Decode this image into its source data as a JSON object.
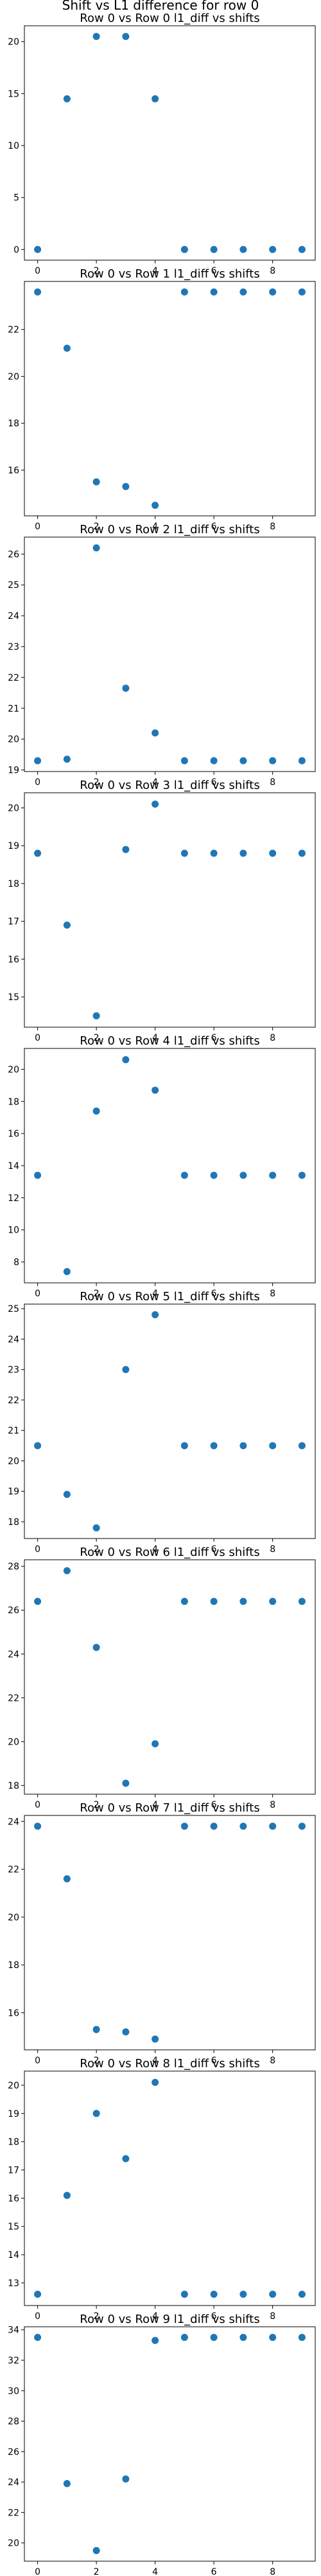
{
  "figure": {
    "suptitle": "Shift vs L1 difference for row 0"
  },
  "chart_data": [
    {
      "type": "scatter",
      "title": "Row 0 vs Row 0 l1_diff vs shifts",
      "x": [
        0,
        1,
        2,
        3,
        4,
        5,
        6,
        7,
        8,
        9
      ],
      "y": [
        0.0,
        14.5,
        20.5,
        20.5,
        14.5,
        0.0,
        0.0,
        0.0,
        0.0,
        0.0
      ],
      "xlim": [
        -0.45,
        9.45
      ],
      "ylim": [
        -1.03,
        21.53
      ],
      "xticks": [
        0,
        2,
        4,
        6,
        8
      ],
      "yticks": [
        0,
        5,
        10,
        15,
        20
      ],
      "grid": false
    },
    {
      "type": "scatter",
      "title": "Row 0 vs Row 1 l1_diff vs shifts",
      "x": [
        0,
        1,
        2,
        3,
        4,
        5,
        6,
        7,
        8,
        9
      ],
      "y": [
        23.6,
        21.2,
        15.5,
        15.3,
        14.5,
        23.6,
        23.6,
        23.6,
        23.6,
        23.6
      ],
      "xlim": [
        -0.45,
        9.45
      ],
      "ylim": [
        14.05,
        24.05
      ],
      "xticks": [
        0,
        2,
        4,
        6,
        8
      ],
      "yticks": [
        16,
        18,
        20,
        22
      ],
      "grid": false
    },
    {
      "type": "scatter",
      "title": "Row 0 vs Row 2 l1_diff vs shifts",
      "x": [
        0,
        1,
        2,
        3,
        4,
        5,
        6,
        7,
        8,
        9
      ],
      "y": [
        19.3,
        19.35,
        26.2,
        21.65,
        20.2,
        19.3,
        19.3,
        19.3,
        19.3,
        19.3
      ],
      "xlim": [
        -0.45,
        9.45
      ],
      "ylim": [
        18.95,
        26.55
      ],
      "xticks": [
        0,
        2,
        4,
        6,
        8
      ],
      "yticks": [
        19,
        20,
        21,
        22,
        23,
        24,
        25,
        26
      ],
      "grid": false
    },
    {
      "type": "scatter",
      "title": "Row 0 vs Row 3 l1_diff vs shifts",
      "x": [
        0,
        1,
        2,
        3,
        4,
        5,
        6,
        7,
        8,
        9
      ],
      "y": [
        18.8,
        16.9,
        14.5,
        18.9,
        20.1,
        18.8,
        18.8,
        18.8,
        18.8,
        18.8
      ],
      "xlim": [
        -0.45,
        9.45
      ],
      "ylim": [
        14.2,
        20.4
      ],
      "xticks": [
        0,
        2,
        4,
        6,
        8
      ],
      "yticks": [
        15,
        16,
        17,
        18,
        19,
        20
      ],
      "grid": false
    },
    {
      "type": "scatter",
      "title": "Row 0 vs Row 4 l1_diff vs shifts",
      "x": [
        0,
        1,
        2,
        3,
        4,
        5,
        6,
        7,
        8,
        9
      ],
      "y": [
        13.4,
        7.4,
        17.4,
        20.6,
        18.7,
        13.4,
        13.4,
        13.4,
        13.4,
        13.4
      ],
      "xlim": [
        -0.45,
        9.45
      ],
      "ylim": [
        6.7,
        21.3
      ],
      "xticks": [
        0,
        2,
        4,
        6,
        8
      ],
      "yticks": [
        8,
        10,
        12,
        14,
        16,
        18,
        20
      ],
      "grid": false
    },
    {
      "type": "scatter",
      "title": "Row 0 vs Row 5 l1_diff vs shifts",
      "x": [
        0,
        1,
        2,
        3,
        4,
        5,
        6,
        7,
        8,
        9
      ],
      "y": [
        20.5,
        18.9,
        17.8,
        23.0,
        24.8,
        20.5,
        20.5,
        20.5,
        20.5,
        20.5
      ],
      "xlim": [
        -0.45,
        9.45
      ],
      "ylim": [
        17.45,
        25.15
      ],
      "xticks": [
        0,
        2,
        4,
        6,
        8
      ],
      "yticks": [
        18,
        19,
        20,
        21,
        22,
        23,
        24,
        25
      ],
      "grid": false
    },
    {
      "type": "scatter",
      "title": "Row 0 vs Row 6 l1_diff vs shifts",
      "x": [
        0,
        1,
        2,
        3,
        4,
        5,
        6,
        7,
        8,
        9
      ],
      "y": [
        26.4,
        27.8,
        24.3,
        18.1,
        19.9,
        26.4,
        26.4,
        26.4,
        26.4,
        26.4
      ],
      "xlim": [
        -0.45,
        9.45
      ],
      "ylim": [
        17.6,
        28.3
      ],
      "xticks": [
        0,
        2,
        4,
        6,
        8
      ],
      "yticks": [
        18,
        20,
        22,
        24,
        26,
        28
      ],
      "grid": false
    },
    {
      "type": "scatter",
      "title": "Row 0 vs Row 7 l1_diff vs shifts",
      "x": [
        0,
        1,
        2,
        3,
        4,
        5,
        6,
        7,
        8,
        9
      ],
      "y": [
        23.8,
        21.6,
        15.3,
        15.2,
        14.9,
        23.8,
        23.8,
        23.8,
        23.8,
        23.8
      ],
      "xlim": [
        -0.45,
        9.45
      ],
      "ylim": [
        14.45,
        24.25
      ],
      "xticks": [
        0,
        2,
        4,
        6,
        8
      ],
      "yticks": [
        16,
        18,
        20,
        22,
        24
      ],
      "grid": false
    },
    {
      "type": "scatter",
      "title": "Row 0 vs Row 8 l1_diff vs shifts",
      "x": [
        0,
        1,
        2,
        3,
        4,
        5,
        6,
        7,
        8,
        9
      ],
      "y": [
        12.6,
        16.1,
        19.0,
        17.4,
        20.1,
        12.6,
        12.6,
        12.6,
        12.6,
        12.6
      ],
      "xlim": [
        -0.45,
        9.45
      ],
      "ylim": [
        12.2,
        20.5
      ],
      "xticks": [
        0,
        2,
        4,
        6,
        8
      ],
      "yticks": [
        13,
        14,
        15,
        16,
        17,
        18,
        19,
        20
      ],
      "grid": false
    },
    {
      "type": "scatter",
      "title": "Row 0 vs Row 9 l1_diff vs shifts",
      "x": [
        0,
        1,
        2,
        3,
        4,
        5,
        6,
        7,
        8,
        9
      ],
      "y": [
        33.5,
        23.9,
        19.5,
        24.2,
        33.3,
        33.5,
        33.5,
        33.5,
        33.5,
        33.5
      ],
      "xlim": [
        -0.45,
        9.45
      ],
      "ylim": [
        18.8,
        34.2
      ],
      "xticks": [
        0,
        2,
        4,
        6,
        8
      ],
      "yticks": [
        20,
        22,
        24,
        26,
        28,
        30,
        32,
        34
      ],
      "grid": false
    }
  ]
}
